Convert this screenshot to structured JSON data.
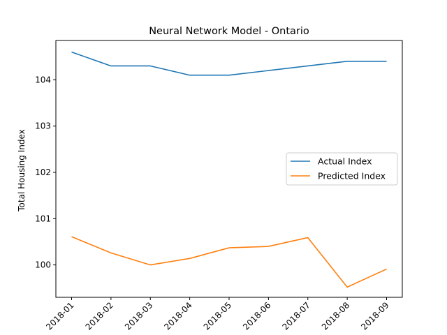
{
  "chart_data": {
    "type": "line",
    "title": "Neural Network Model - Ontario",
    "xlabel": "",
    "ylabel": "Total Housing Index",
    "categories": [
      "2018-01",
      "2018-02",
      "2018-03",
      "2018-04",
      "2018-05",
      "2018-06",
      "2018-07",
      "2018-08",
      "2018-09"
    ],
    "ylim": [
      99.3,
      104.85
    ],
    "yticks": [
      100,
      101,
      102,
      103,
      104
    ],
    "grid": false,
    "legend_position": "center-right",
    "series": [
      {
        "name": "Actual Index",
        "color": "#1f77b4",
        "values": [
          104.6,
          104.3,
          104.3,
          104.1,
          104.1,
          104.2,
          104.3,
          104.4,
          104.4
        ]
      },
      {
        "name": "Predicted Index",
        "color": "#ff7f0e",
        "values": [
          100.61,
          100.26,
          100.0,
          100.14,
          100.37,
          100.4,
          100.59,
          99.52,
          99.91
        ]
      }
    ]
  }
}
